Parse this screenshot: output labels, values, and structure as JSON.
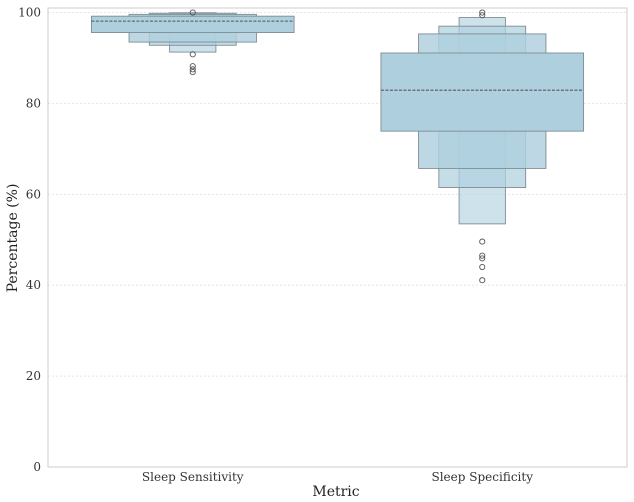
{
  "chart_data": {
    "type": "boxen",
    "title": "",
    "xlabel": "Metric",
    "ylabel": "Percentage (%)",
    "ylim": [
      0,
      101
    ],
    "yticks": [
      0,
      20,
      40,
      60,
      80,
      100
    ],
    "grid": "horizontal dotted",
    "legend": "none",
    "colors": {
      "box_fill": "#aed0de",
      "box_stroke": "#7f8c93",
      "median_line": "#6d7378",
      "outlier": "#555555",
      "axis_frame": "#cccccc",
      "grid": "#e6e6e6"
    },
    "categories": [
      "Sleep Sensitivity",
      "Sleep Specificity"
    ],
    "series": [
      {
        "category": "Sleep Sensitivity",
        "median": 98.1,
        "boxes": [
          {
            "low": 95.6,
            "high": 99.2
          },
          {
            "low": 93.5,
            "high": 99.6
          },
          {
            "low": 92.8,
            "high": 99.85
          },
          {
            "low": 91.3,
            "high": 99.95
          }
        ],
        "outliers": [
          100.0,
          90.8,
          88.2,
          87.5,
          86.9
        ]
      },
      {
        "category": "Sleep Specificity",
        "median": 82.9,
        "boxes": [
          {
            "low": 73.9,
            "high": 91.1
          },
          {
            "low": 65.7,
            "high": 95.3
          },
          {
            "low": 61.5,
            "high": 97.0
          },
          {
            "low": 53.5,
            "high": 98.9
          }
        ],
        "outliers": [
          100.0,
          99.4,
          49.6,
          46.5,
          45.9,
          44.0,
          41.1
        ]
      }
    ]
  }
}
